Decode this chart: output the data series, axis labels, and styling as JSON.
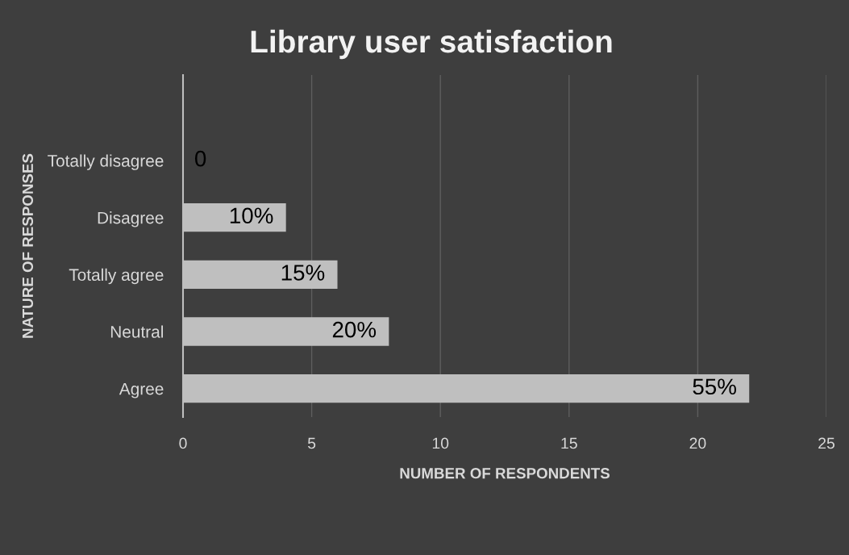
{
  "chart_data": {
    "type": "bar",
    "orientation": "horizontal",
    "title": "Library user satisfaction",
    "xlabel": "NUMBER OF RESPONDENTS",
    "ylabel": "NATURE OF RESPONSES",
    "categories": [
      null,
      "Totally disagree",
      "Disagree",
      "Totally agree",
      "Neutral",
      "Agree"
    ],
    "values": [
      null,
      0,
      4,
      6,
      8,
      22
    ],
    "annotations": [
      {
        "text": "0",
        "x": 0,
        "y": "Totally disagree"
      },
      {
        "text": "10%",
        "x": 4,
        "y": "Disagree"
      },
      {
        "text": "15%",
        "x": 6,
        "y": "Totally agree"
      },
      {
        "text": "20%",
        "x": 8,
        "y": "Neutral"
      },
      {
        "text": "55%",
        "x": 22,
        "y": "Agree"
      }
    ],
    "color": "#bfbfbf",
    "xlim": [
      0,
      25
    ],
    "xticks": [
      0,
      5,
      10,
      15,
      20,
      25
    ],
    "grid": "x"
  }
}
